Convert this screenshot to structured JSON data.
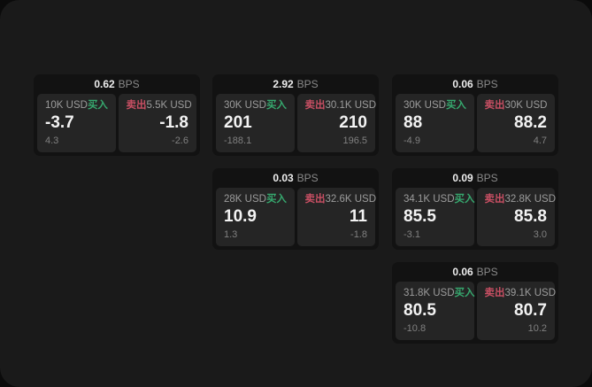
{
  "labels": {
    "buy": "买入",
    "sell": "卖出",
    "bps_unit": "BPS"
  },
  "colors": {
    "page_bg": "#1a1a1a",
    "card_bg": "#121212",
    "tile_bg": "#252525",
    "buy_green": "#36a86e",
    "sell_red": "#c84f63"
  },
  "cards": [
    {
      "bps": "0.62",
      "buy": {
        "amount": "10K USD",
        "price": "-3.7",
        "delta": "4.3"
      },
      "sell": {
        "amount": "5.5K USD",
        "price": "-1.8",
        "delta": "-2.6"
      }
    },
    {
      "bps": "2.92",
      "buy": {
        "amount": "30K USD",
        "price": "201",
        "delta": "-188.1"
      },
      "sell": {
        "amount": "30.1K USD",
        "price": "210",
        "delta": "196.5"
      }
    },
    {
      "bps": "0.06",
      "buy": {
        "amount": "30K USD",
        "price": "88",
        "delta": "-4.9"
      },
      "sell": {
        "amount": "30K USD",
        "price": "88.2",
        "delta": "4.7"
      }
    },
    {
      "bps": "0.03",
      "buy": {
        "amount": "28K USD",
        "price": "10.9",
        "delta": "1.3"
      },
      "sell": {
        "amount": "32.6K USD",
        "price": "11",
        "delta": "-1.8"
      }
    },
    {
      "bps": "0.09",
      "buy": {
        "amount": "34.1K USD",
        "price": "85.5",
        "delta": "-3.1"
      },
      "sell": {
        "amount": "32.8K USD",
        "price": "85.8",
        "delta": "3.0"
      }
    },
    {
      "bps": "0.06",
      "buy": {
        "amount": "31.8K USD",
        "price": "80.5",
        "delta": "-10.8"
      },
      "sell": {
        "amount": "39.1K USD",
        "price": "80.7",
        "delta": "10.2"
      }
    }
  ]
}
